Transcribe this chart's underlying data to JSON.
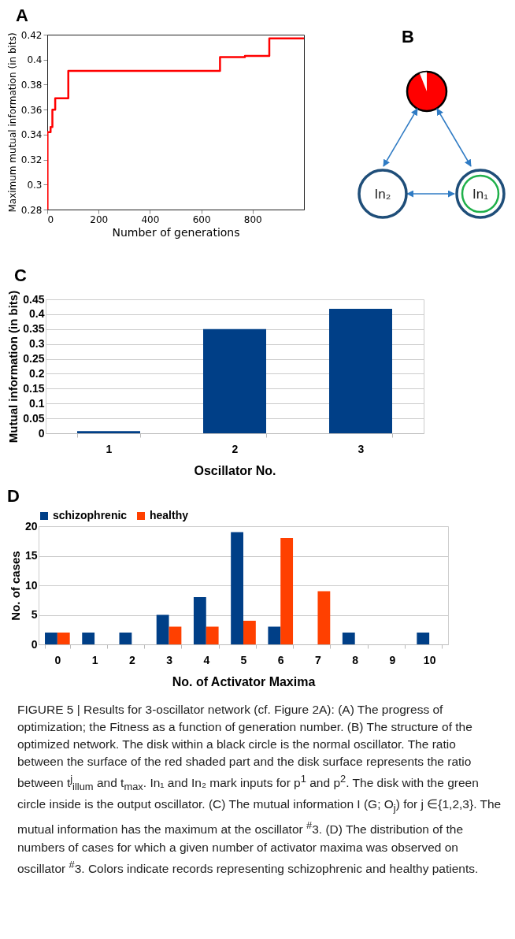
{
  "chart_data": [
    {
      "type": "step",
      "title": "A",
      "xlabel": "Number of generations",
      "ylabel": "Maximum mutual information (in bits)",
      "x": [
        0,
        1,
        13,
        20,
        31,
        82,
        673,
        770,
        865,
        1000
      ],
      "series": [
        {
          "color": "#ff0000",
          "values": [
            0.28,
            0.342,
            0.346,
            0.36,
            0.369,
            0.391,
            0.402,
            0.403,
            0.417,
            0.417
          ]
        }
      ],
      "xlim": [
        0,
        1000
      ],
      "xticks": [
        0,
        200,
        400,
        600,
        800
      ],
      "ylim": [
        0.28,
        0.42
      ],
      "yticks": [
        0.28,
        0.3,
        0.32,
        0.34,
        0.36,
        0.38,
        0.4,
        0.42
      ],
      "grid": false
    },
    {
      "type": "other",
      "title": "B",
      "annotations": [
        "In₂",
        "In₁"
      ]
    },
    {
      "type": "bar",
      "title": "C",
      "xlabel": "Oscillator No.",
      "ylabel": "Mutual information (in bits)",
      "categories": [
        "1",
        "2",
        "3"
      ],
      "series": [
        {
          "color": "#003f87",
          "values": [
            0.007,
            0.35,
            0.418
          ]
        }
      ],
      "ylim": [
        0,
        0.45
      ],
      "yticks": [
        0,
        0.05,
        0.1,
        0.15,
        0.2,
        0.25,
        0.3,
        0.35,
        0.4,
        0.45
      ],
      "grid": "y"
    },
    {
      "type": "bar",
      "title": "D",
      "xlabel": "No. of Activator Maxima",
      "ylabel": "No. of cases",
      "categories": [
        "0",
        "1",
        "2",
        "3",
        "4",
        "5",
        "6",
        "7",
        "8",
        "9",
        "10"
      ],
      "series": [
        {
          "name": "schizophrenic",
          "color": "#003f87",
          "values": [
            2,
            2,
            2,
            5,
            8,
            19,
            3,
            null,
            2,
            null,
            2
          ]
        },
        {
          "name": "healthy",
          "color": "#ff4000",
          "values": [
            2,
            null,
            null,
            3,
            3,
            4,
            18,
            9,
            null,
            null,
            null
          ]
        }
      ],
      "ylim": [
        0,
        20
      ],
      "yticks": [
        0,
        5,
        10,
        15,
        20
      ],
      "grid": "y",
      "legend": "top",
      "annotations": [
        "FIGURE 5 | Results for 3-oscillator network (cf. Figure 2A): (A) The progress of optimization; the Fitness as a function of generation number. (B) The structure of the optimized network. The disk within a black circle is the normal oscillator. The ratio between the surface of the red shaded part and the disk surface represents the ratio between t$^{j}$$_{illum}$ and t$_{max}$. In₁ and In₂ mark inputs for p$^{1}$ and p$^{2}$. The disk with the green circle inside is the output oscillator. (C) The mutual information I (G; O$_{j}$) for j ∈{1,2,3}. The mutual information has the maximum at the oscillator $^{#}$3. (D) The distribution of the numbers of cases for which a given number of activator maxima was observed on oscillator $^{#}$3. Colors indicate records representing schizophrenic and healthy patients."
      ]
    }
  ]
}
